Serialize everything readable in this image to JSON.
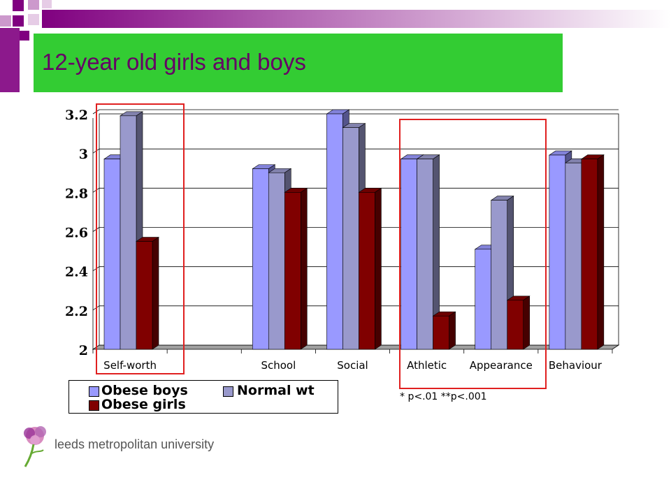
{
  "slide": {
    "title": "12-year old girls and boys",
    "note": "* p<.01 **p<.001",
    "logo_text": "leeds metropolitan university"
  },
  "colors": {
    "title_bg": "#33cc33",
    "title_text": "#660066",
    "highlight": "#e02020"
  },
  "chart_data": {
    "type": "bar",
    "categories": [
      "Self-worth",
      "",
      "School",
      "Social",
      "Athletic",
      "Appearance",
      "Behaviour"
    ],
    "series": [
      {
        "name": "Obese boys",
        "color": "#9999ff",
        "values": [
          2.97,
          null,
          2.92,
          3.2,
          2.97,
          2.51,
          2.99
        ]
      },
      {
        "name": "Normal wt",
        "color": "#9999cc",
        "values": [
          3.19,
          null,
          2.9,
          3.13,
          2.97,
          2.76,
          2.95
        ]
      },
      {
        "name": "Obese girls",
        "color": "#800000",
        "values": [
          2.55,
          null,
          2.8,
          2.8,
          2.17,
          2.25,
          2.97
        ]
      }
    ],
    "yticks": [
      "2",
      "2.2",
      "2.4",
      "2.6",
      "2.8",
      "3",
      "3.2"
    ],
    "ylim": [
      2,
      3.2
    ],
    "grid": true,
    "legend": "bottom-left"
  }
}
